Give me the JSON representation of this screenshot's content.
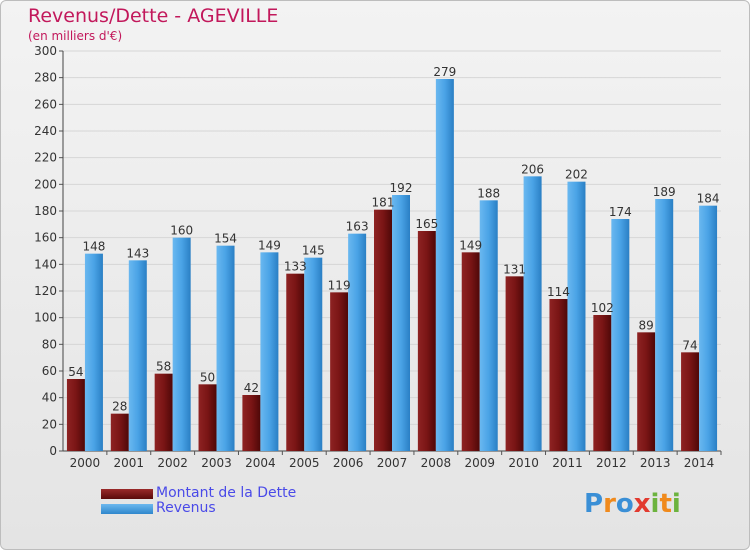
{
  "header": {
    "title": "Revenus/Dette - AGEVILLE",
    "subtitle": "(en milliers d'€)"
  },
  "legend": {
    "debt_label": "Montant de la Dette",
    "revenue_label": "Revenus"
  },
  "logo": {
    "text": "Proxiti"
  },
  "colors": {
    "debt": "#7a1a1a",
    "revenue": "#4aa3e6",
    "title": "#c2185b"
  },
  "chart_data": {
    "type": "bar",
    "title": "Revenus/Dette - AGEVILLE",
    "subtitle": "(en milliers d'€)",
    "categories": [
      "2000",
      "2001",
      "2002",
      "2003",
      "2004",
      "2005",
      "2006",
      "2007",
      "2008",
      "2009",
      "2010",
      "2011",
      "2012",
      "2013",
      "2014"
    ],
    "series": [
      {
        "name": "Montant de la Dette",
        "values": [
          54,
          28,
          58,
          50,
          42,
          133,
          119,
          181,
          165,
          149,
          131,
          114,
          102,
          89,
          74
        ]
      },
      {
        "name": "Revenus",
        "values": [
          148,
          143,
          160,
          154,
          149,
          145,
          163,
          192,
          279,
          188,
          206,
          202,
          174,
          189,
          184
        ]
      }
    ],
    "data_labels": {
      "debt": [
        "54",
        "28",
        "58",
        "50",
        "42",
        "133",
        "119",
        "181",
        "165",
        "149",
        "131",
        "114",
        "102",
        "89",
        "74"
      ],
      "revenue": [
        "148",
        "143",
        "160",
        "154",
        "149",
        "145",
        "163",
        "192",
        "279",
        "188",
        "206",
        "202",
        "174",
        "189",
        "184"
      ]
    },
    "yticks": [
      0,
      20,
      40,
      60,
      80,
      100,
      120,
      140,
      160,
      180,
      200,
      220,
      240,
      260,
      280,
      300
    ],
    "ylim": [
      0,
      300
    ],
    "grid": true,
    "legend_position": "bottom-left"
  }
}
